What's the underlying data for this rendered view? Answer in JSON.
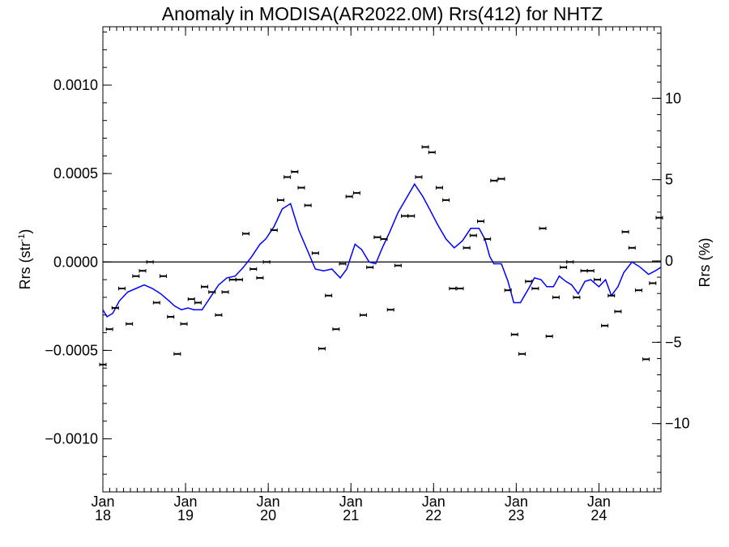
{
  "chart_data": {
    "type": "scatter",
    "title": "Anomaly in MODISA(AR2022.0M) Rrs(412) for NHTZ",
    "ylabel_main": "Rrs (str",
    "ylabel_sup": "-1",
    "ylabel_close": ")",
    "ylabel_right": "Rrs (%)",
    "xlim": [
      2018.0,
      2024.75
    ],
    "ylim": [
      -0.0013,
      0.00133
    ],
    "y2lim": [
      -14.2,
      14.4
    ],
    "reference_line": 0,
    "grid": false,
    "x_ticks": [
      {
        "value": 2018.0,
        "month": "Jan",
        "year": "18"
      },
      {
        "value": 2019.0,
        "month": "Jan",
        "year": "19"
      },
      {
        "value": 2020.0,
        "month": "Jan",
        "year": "20"
      },
      {
        "value": 2021.0,
        "month": "Jan",
        "year": "21"
      },
      {
        "value": 2022.0,
        "month": "Jan",
        "year": "22"
      },
      {
        "value": 2023.0,
        "month": "Jan",
        "year": "23"
      },
      {
        "value": 2024.0,
        "month": "Jan",
        "year": "24"
      }
    ],
    "y_ticks": [
      {
        "value": 0.001,
        "label": "0.0010"
      },
      {
        "value": 0.0005,
        "label": "0.0005"
      },
      {
        "value": 0.0,
        "label": "0.0000"
      },
      {
        "value": -0.0005,
        "label": "−0.0005"
      },
      {
        "value": -0.001,
        "label": "−0.0010"
      }
    ],
    "y2_ticks": [
      {
        "value": 10,
        "label": "10"
      },
      {
        "value": 5,
        "label": "5"
      },
      {
        "value": 0,
        "label": "0"
      },
      {
        "value": -5,
        "label": "−5"
      },
      {
        "value": -10,
        "label": "−10"
      }
    ],
    "series": [
      {
        "type": "scatter-errorbar",
        "color": "#000000",
        "x": [
          2018.0,
          2018.08,
          2018.15,
          2018.23,
          2018.32,
          2018.4,
          2018.48,
          2018.57,
          2018.65,
          2018.73,
          2018.82,
          2018.9,
          2018.98,
          2019.07,
          2019.15,
          2019.23,
          2019.32,
          2019.4,
          2019.48,
          2019.57,
          2019.65,
          2019.73,
          2019.82,
          2019.9,
          2019.98,
          2020.07,
          2020.15,
          2020.23,
          2020.32,
          2020.4,
          2020.48,
          2020.57,
          2020.65,
          2020.73,
          2020.82,
          2020.9,
          2020.98,
          2021.07,
          2021.15,
          2021.23,
          2021.32,
          2021.4,
          2021.48,
          2021.57,
          2021.65,
          2021.73,
          2021.82,
          2021.9,
          2021.98,
          2022.07,
          2022.15,
          2022.23,
          2022.32,
          2022.4,
          2022.48,
          2022.57,
          2022.65,
          2022.73,
          2022.82,
          2022.9,
          2022.98,
          2023.07,
          2023.15,
          2023.23,
          2023.32,
          2023.4,
          2023.48,
          2023.57,
          2023.65,
          2023.73,
          2023.82,
          2023.9,
          2023.98,
          2024.07,
          2024.15,
          2024.23,
          2024.32,
          2024.4,
          2024.48,
          2024.57,
          2024.65,
          2024.73
        ],
        "y": [
          -0.00058,
          -0.00038,
          -0.00026,
          -0.00015,
          -0.00035,
          -8e-05,
          -5e-05,
          0.0,
          -0.00023,
          -8e-05,
          -0.00031,
          -0.00052,
          -0.00035,
          -0.00021,
          -0.00023,
          -0.00014,
          -0.00017,
          -0.0003,
          -0.00017,
          -0.0001,
          -0.0001,
          0.00016,
          -4e-05,
          -9e-05,
          0.0,
          0.00018,
          0.00035,
          0.00048,
          0.00051,
          0.00042,
          0.00032,
          5e-05,
          -0.00049,
          -0.00019,
          -0.00038,
          -1e-05,
          0.00037,
          0.00039,
          -0.0003,
          -3e-05,
          0.00014,
          0.00013,
          -0.00027,
          -2e-05,
          0.00026,
          0.00026,
          0.00048,
          0.00065,
          0.00062,
          0.00042,
          0.00035,
          -0.00015,
          -0.00015,
          8e-05,
          0.00015,
          0.00023,
          0.00013,
          0.00046,
          0.00047,
          -0.00016,
          -0.00041,
          -0.00052,
          -0.00011,
          -0.00015,
          0.00019,
          -0.00042,
          -0.0002,
          -3e-05,
          0.0,
          -0.0002,
          -5e-05,
          -5e-05,
          -0.0001,
          -0.00036,
          -0.00019,
          -0.00028,
          0.00017,
          8e-05,
          -0.00016,
          -0.00055,
          -0.00012,
          0.00025
        ],
        "error": 3.5e-06
      },
      {
        "type": "line",
        "color": "#0000ff",
        "x": [
          2018.0,
          2018.05,
          2018.12,
          2018.2,
          2018.3,
          2018.4,
          2018.5,
          2018.6,
          2018.7,
          2018.8,
          2018.87,
          2018.95,
          2019.03,
          2019.1,
          2019.2,
          2019.3,
          2019.4,
          2019.5,
          2019.6,
          2019.7,
          2019.8,
          2019.9,
          2019.97,
          2020.07,
          2020.17,
          2020.27,
          2020.37,
          2020.47,
          2020.57,
          2020.67,
          2020.77,
          2020.87,
          2020.95,
          2021.05,
          2021.13,
          2021.22,
          2021.3,
          2021.38,
          2021.47,
          2021.57,
          2021.67,
          2021.77,
          2021.87,
          2021.95,
          2022.05,
          2022.15,
          2022.25,
          2022.35,
          2022.45,
          2022.55,
          2022.62,
          2022.68,
          2022.73,
          2022.82,
          2022.9,
          2022.97,
          2023.05,
          2023.15,
          2023.22,
          2023.3,
          2023.37,
          2023.45,
          2023.52,
          2023.6,
          2023.67,
          2023.75,
          2023.83,
          2023.9,
          2024.0,
          2024.08,
          2024.15,
          2024.23,
          2024.3,
          2024.4,
          2024.5,
          2024.6,
          2024.68,
          2024.75
        ],
        "y": [
          -0.00027,
          -0.00031,
          -0.00029,
          -0.00022,
          -0.00017,
          -0.00015,
          -0.00013,
          -0.00015,
          -0.00018,
          -0.00022,
          -0.00025,
          -0.00027,
          -0.00026,
          -0.00027,
          -0.00027,
          -0.0002,
          -0.00013,
          -9e-05,
          -8e-05,
          -3e-05,
          3e-05,
          0.0001,
          0.00013,
          0.0002,
          0.0003,
          0.00033,
          0.00018,
          7e-05,
          -4e-05,
          -5e-05,
          -4e-05,
          -9e-05,
          -4e-05,
          0.0001,
          7e-05,
          0.0,
          -1e-05,
          8e-05,
          0.00017,
          0.00028,
          0.00036,
          0.00044,
          0.00037,
          0.0003,
          0.00021,
          0.00013,
          8e-05,
          0.00012,
          0.00019,
          0.00019,
          0.00013,
          3e-05,
          -1e-05,
          -1e-05,
          -0.00011,
          -0.00023,
          -0.00023,
          -0.00015,
          -9e-05,
          -0.0001,
          -0.00014,
          -0.00014,
          -8e-05,
          -0.00011,
          -0.00013,
          -0.00018,
          -0.00011,
          -0.0001,
          -0.00014,
          -0.0001,
          -0.00019,
          -0.00014,
          -6e-05,
          0.0,
          -3e-05,
          -7e-05,
          -5e-05,
          -3e-05
        ]
      }
    ]
  }
}
